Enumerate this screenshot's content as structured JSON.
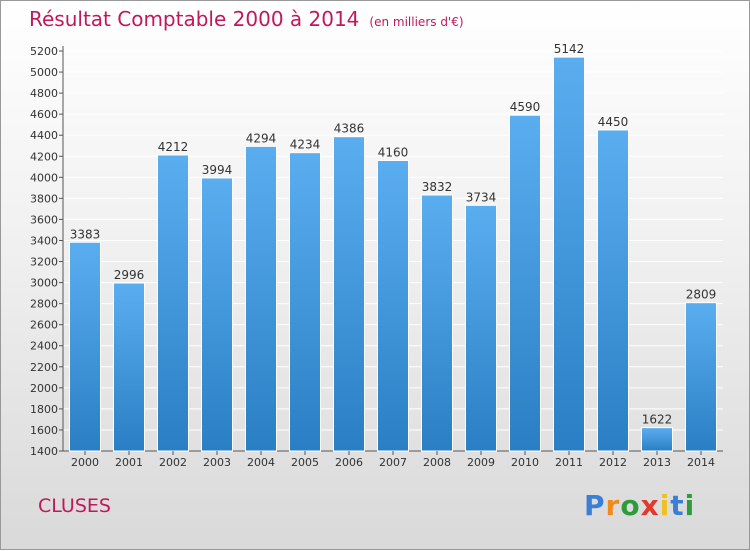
{
  "title": "Résultat Comptable 2000 à 2014",
  "unit": "(en milliers d'€)",
  "city": "CLUSES",
  "brand": [
    "P",
    "r",
    "o",
    "x",
    "i",
    "t",
    "i"
  ],
  "brand_colors": [
    "#3a7fd5",
    "#f08a1c",
    "#2e9b3d",
    "#e03a2f",
    "#f0c020",
    "#3a7fd5",
    "#2e9b3d"
  ],
  "colors": {
    "title": "#c2185b",
    "bar_top": "#5aaef0",
    "bar_bottom": "#2a7fc4"
  },
  "chart_data": {
    "type": "bar",
    "title": "Résultat Comptable 2000 à 2014",
    "xlabel": "",
    "ylabel": "",
    "categories": [
      "2000",
      "2001",
      "2002",
      "2003",
      "2004",
      "2005",
      "2006",
      "2007",
      "2008",
      "2009",
      "2010",
      "2011",
      "2012",
      "2013",
      "2014"
    ],
    "values": [
      3383,
      2996,
      4212,
      3994,
      4294,
      4234,
      4386,
      4160,
      3832,
      3734,
      4590,
      5142,
      4450,
      1622,
      2809
    ],
    "ylim": [
      1400,
      5200
    ],
    "yticks": [
      1400,
      1600,
      1800,
      2000,
      2200,
      2400,
      2600,
      2800,
      3000,
      3200,
      3400,
      3600,
      3800,
      4000,
      4200,
      4400,
      4600,
      4800,
      5000,
      5200
    ],
    "grid": true
  }
}
